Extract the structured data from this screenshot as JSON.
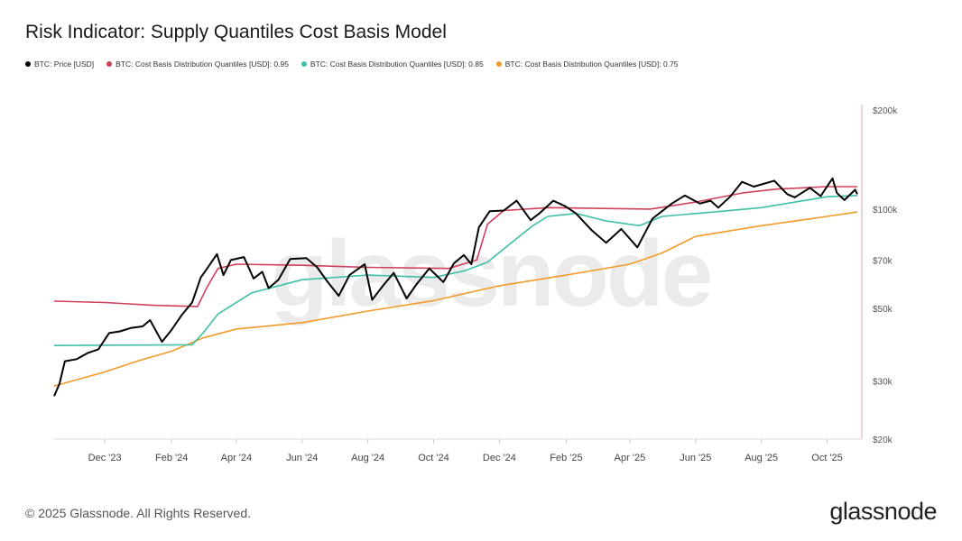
{
  "title": "Risk Indicator: Supply Quantiles Cost Basis Model",
  "footer": {
    "copyright": "© 2025 Glassnode. All Rights Reserved.",
    "logo": "glassnode"
  },
  "watermark": "glassnode",
  "chart_data": {
    "type": "line",
    "title": "Risk Indicator: Supply Quantiles Cost Basis Model",
    "y_scale": "log",
    "ylim": [
      20000,
      200000
    ],
    "xlim": [
      "2023-10-15",
      "2025-10-29"
    ],
    "grid": false,
    "legend_position": "top-left",
    "y_axis_position": "right",
    "y_ticks": [
      {
        "value": 200000,
        "label": "$200k"
      },
      {
        "value": 100000,
        "label": "$100k"
      },
      {
        "value": 70000,
        "label": "$70k"
      },
      {
        "value": 50000,
        "label": "$50k"
      },
      {
        "value": 30000,
        "label": "$30k"
      },
      {
        "value": 20000,
        "label": "$20k"
      }
    ],
    "x_ticks": [
      {
        "date": "2023-12-01",
        "label": "Dec '23"
      },
      {
        "date": "2024-02-01",
        "label": "Feb '24"
      },
      {
        "date": "2024-04-01",
        "label": "Apr '24"
      },
      {
        "date": "2024-06-01",
        "label": "Jun '24"
      },
      {
        "date": "2024-08-01",
        "label": "Aug '24"
      },
      {
        "date": "2024-10-01",
        "label": "Oct '24"
      },
      {
        "date": "2024-12-01",
        "label": "Dec '24"
      },
      {
        "date": "2025-02-01",
        "label": "Feb '25"
      },
      {
        "date": "2025-04-01",
        "label": "Apr '25"
      },
      {
        "date": "2025-06-01",
        "label": "Jun '25"
      },
      {
        "date": "2025-08-01",
        "label": "Aug '25"
      },
      {
        "date": "2025-10-01",
        "label": "Oct '25"
      }
    ],
    "series": [
      {
        "name": "BTC: Price [USD]",
        "color": "#000000",
        "points": [
          [
            "2023-10-15",
            27000
          ],
          [
            "2023-10-20",
            29500
          ],
          [
            "2023-10-25",
            34500
          ],
          [
            "2023-11-05",
            35000
          ],
          [
            "2023-11-15",
            36500
          ],
          [
            "2023-11-25",
            37500
          ],
          [
            "2023-12-05",
            42000
          ],
          [
            "2023-12-15",
            42500
          ],
          [
            "2023-12-25",
            43500
          ],
          [
            "2024-01-05",
            44000
          ],
          [
            "2024-01-12",
            46000
          ],
          [
            "2024-01-23",
            39500
          ],
          [
            "2024-02-01",
            43000
          ],
          [
            "2024-02-10",
            47500
          ],
          [
            "2024-02-20",
            52000
          ],
          [
            "2024-02-28",
            62000
          ],
          [
            "2024-03-05",
            66000
          ],
          [
            "2024-03-14",
            73000
          ],
          [
            "2024-03-20",
            63000
          ],
          [
            "2024-03-27",
            70000
          ],
          [
            "2024-04-08",
            71500
          ],
          [
            "2024-04-17",
            61500
          ],
          [
            "2024-04-25",
            64500
          ],
          [
            "2024-05-01",
            57500
          ],
          [
            "2024-05-10",
            61000
          ],
          [
            "2024-05-21",
            70500
          ],
          [
            "2024-06-05",
            71000
          ],
          [
            "2024-06-15",
            66500
          ],
          [
            "2024-06-24",
            60500
          ],
          [
            "2024-07-05",
            54500
          ],
          [
            "2024-07-15",
            63000
          ],
          [
            "2024-07-29",
            68000
          ],
          [
            "2024-08-05",
            53000
          ],
          [
            "2024-08-15",
            58500
          ],
          [
            "2024-08-25",
            64000
          ],
          [
            "2024-09-06",
            53500
          ],
          [
            "2024-09-15",
            59000
          ],
          [
            "2024-09-27",
            66000
          ],
          [
            "2024-10-10",
            60000
          ],
          [
            "2024-10-20",
            68500
          ],
          [
            "2024-10-29",
            72500
          ],
          [
            "2024-11-05",
            68000
          ],
          [
            "2024-11-12",
            88000
          ],
          [
            "2024-11-22",
            98500
          ],
          [
            "2024-12-05",
            99000
          ],
          [
            "2024-12-17",
            106000
          ],
          [
            "2024-12-30",
            92500
          ],
          [
            "2025-01-07",
            97000
          ],
          [
            "2025-01-20",
            106000
          ],
          [
            "2025-01-31",
            102000
          ],
          [
            "2025-02-10",
            97000
          ],
          [
            "2025-02-25",
            86000
          ],
          [
            "2025-03-10",
            79000
          ],
          [
            "2025-03-24",
            87000
          ],
          [
            "2025-04-08",
            76500
          ],
          [
            "2025-04-22",
            93500
          ],
          [
            "2025-05-10",
            104000
          ],
          [
            "2025-05-22",
            110000
          ],
          [
            "2025-06-05",
            104000
          ],
          [
            "2025-06-15",
            106000
          ],
          [
            "2025-06-22",
            101000
          ],
          [
            "2025-07-03",
            109000
          ],
          [
            "2025-07-14",
            121000
          ],
          [
            "2025-07-25",
            117000
          ],
          [
            "2025-08-13",
            122000
          ],
          [
            "2025-08-25",
            111000
          ],
          [
            "2025-09-01",
            108500
          ],
          [
            "2025-09-15",
            116000
          ],
          [
            "2025-09-25",
            109500
          ],
          [
            "2025-10-06",
            124000
          ],
          [
            "2025-10-10",
            112000
          ],
          [
            "2025-10-17",
            106500
          ],
          [
            "2025-10-27",
            114500
          ],
          [
            "2025-10-29",
            111000
          ]
        ]
      },
      {
        "name": "BTC: Cost Basis Distribution Quantiles [USD]: 0.95",
        "color": "#d1405a",
        "points": [
          [
            "2023-10-15",
            52500
          ],
          [
            "2023-12-01",
            52000
          ],
          [
            "2024-01-15",
            51000
          ],
          [
            "2024-02-25",
            50600
          ],
          [
            "2024-03-05",
            58000
          ],
          [
            "2024-03-15",
            66000
          ],
          [
            "2024-04-01",
            68000
          ],
          [
            "2024-06-01",
            67500
          ],
          [
            "2024-08-01",
            66500
          ],
          [
            "2024-10-15",
            66000
          ],
          [
            "2024-11-10",
            70000
          ],
          [
            "2024-11-20",
            90000
          ],
          [
            "2024-12-05",
            99000
          ],
          [
            "2025-01-15",
            101000
          ],
          [
            "2025-04-20",
            100000
          ],
          [
            "2025-06-01",
            105000
          ],
          [
            "2025-07-15",
            112000
          ],
          [
            "2025-08-15",
            115000
          ],
          [
            "2025-10-01",
            117000
          ],
          [
            "2025-10-29",
            117000
          ]
        ]
      },
      {
        "name": "BTC: Cost Basis Distribution Quantiles [USD]: 0.85",
        "color": "#3ebfa8",
        "points": [
          [
            "2023-10-15",
            38500
          ],
          [
            "2024-02-20",
            38700
          ],
          [
            "2024-03-01",
            42000
          ],
          [
            "2024-03-15",
            48000
          ],
          [
            "2024-04-15",
            55600
          ],
          [
            "2024-06-01",
            61000
          ],
          [
            "2024-08-01",
            63000
          ],
          [
            "2024-10-01",
            62000
          ],
          [
            "2024-10-30",
            65000
          ],
          [
            "2024-11-20",
            69000
          ],
          [
            "2024-12-10",
            78000
          ],
          [
            "2025-01-01",
            89000
          ],
          [
            "2025-01-15",
            95000
          ],
          [
            "2025-02-10",
            97000
          ],
          [
            "2025-03-10",
            92000
          ],
          [
            "2025-04-10",
            89000
          ],
          [
            "2025-05-01",
            95000
          ],
          [
            "2025-06-10",
            97500
          ],
          [
            "2025-08-01",
            101000
          ],
          [
            "2025-10-01",
            109000
          ],
          [
            "2025-10-29",
            110000
          ]
        ]
      },
      {
        "name": "BTC: Cost Basis Distribution Quantiles [USD]: 0.75",
        "color": "#f29b2a",
        "points": [
          [
            "2023-10-15",
            29000
          ],
          [
            "2023-12-01",
            32000
          ],
          [
            "2024-01-01",
            34600
          ],
          [
            "2024-02-01",
            37000
          ],
          [
            "2024-03-01",
            40600
          ],
          [
            "2024-04-01",
            43200
          ],
          [
            "2024-06-01",
            45200
          ],
          [
            "2024-08-01",
            49000
          ],
          [
            "2024-10-01",
            52700
          ],
          [
            "2024-12-01",
            58500
          ],
          [
            "2025-02-01",
            63000
          ],
          [
            "2025-04-01",
            68000
          ],
          [
            "2025-05-01",
            73600
          ],
          [
            "2025-06-01",
            82600
          ],
          [
            "2025-08-01",
            89000
          ],
          [
            "2025-10-01",
            95000
          ],
          [
            "2025-10-29",
            98000
          ]
        ]
      }
    ]
  }
}
